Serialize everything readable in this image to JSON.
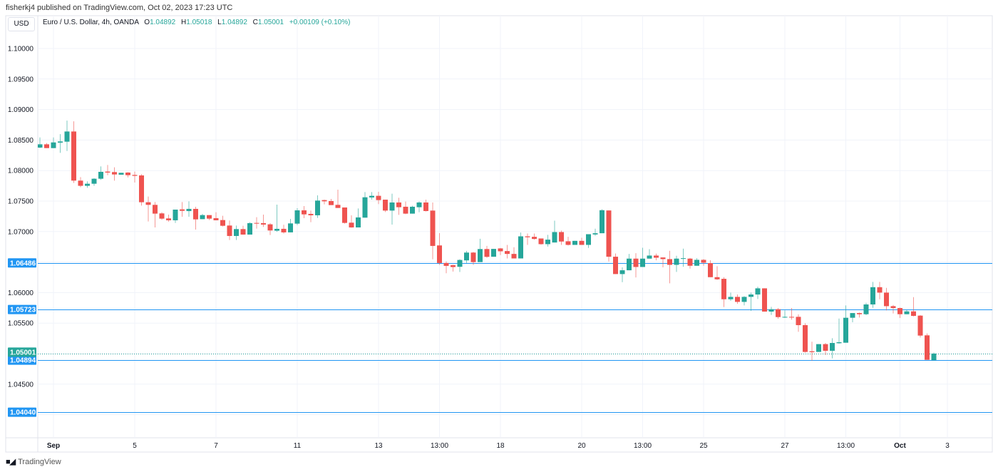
{
  "header": {
    "published": "fisherkj4 published on TradingView.com, Oct 02, 2023 17:23 UTC",
    "currency_button": "USD",
    "symbol": "Euro / U.S. Dollar, 4h, OANDA",
    "o_label": "O",
    "o_value": "1.04892",
    "h_label": "H",
    "h_value": "1.05018",
    "l_label": "L",
    "l_value": "1.04892",
    "c_label": "C",
    "c_value": "1.05001",
    "change": "+0.00109 (+0.10%)"
  },
  "footer": {
    "brand": "TradingView",
    "logo_text": "TV"
  },
  "colors": {
    "up": "#26a69a",
    "down": "#ef5350",
    "level_line": "#2196f3",
    "grid": "#f0f3fa",
    "axis_text": "#131722"
  },
  "chart_data": {
    "type": "candlestick",
    "title": "Euro / U.S. Dollar, 4h, OANDA",
    "ylim": [
      1.0345,
      1.1035
    ],
    "grid": true,
    "y_grid_step": 0.005,
    "y_ticks": [
      "1.10000",
      "1.09500",
      "1.09000",
      "1.08500",
      "1.08000",
      "1.07500",
      "1.07000",
      "1.06000",
      "1.05500",
      "1.04500"
    ],
    "x_ticks": [
      {
        "label": "Sep",
        "index": 2,
        "bold": true
      },
      {
        "label": "5",
        "index": 14
      },
      {
        "label": "7",
        "index": 26
      },
      {
        "label": "11",
        "index": 38
      },
      {
        "label": "13",
        "index": 50
      },
      {
        "label": "13:00",
        "index": 59
      },
      {
        "label": "18",
        "index": 68
      },
      {
        "label": "20",
        "index": 80
      },
      {
        "label": "13:00",
        "index": 89
      },
      {
        "label": "25",
        "index": 98
      },
      {
        "label": "27",
        "index": 110
      },
      {
        "label": "13:00",
        "index": 119
      },
      {
        "label": "Oct",
        "index": 127,
        "bold": true
      },
      {
        "label": "3",
        "index": 134
      }
    ],
    "horizontal_levels": [
      {
        "label": "1.06486",
        "value": 1.06486
      },
      {
        "label": "1.05723",
        "value": 1.05723
      },
      {
        "label": "1.04894",
        "value": 1.04894
      },
      {
        "label": "1.04040",
        "value": 1.0404
      }
    ],
    "last_price": {
      "label": "1.05001",
      "value": 1.05001
    },
    "candles_ohlc": [
      [
        1.08376,
        1.08543,
        1.08368,
        1.0843
      ],
      [
        1.0843,
        1.0845,
        1.08368,
        1.08368
      ],
      [
        1.08368,
        1.08543,
        1.08368,
        1.08461
      ],
      [
        1.08457,
        1.08597,
        1.0829,
        1.08477
      ],
      [
        1.08473,
        1.08819,
        1.08321,
        1.0864
      ],
      [
        1.0864,
        1.08807,
        1.07796,
        1.07835
      ],
      [
        1.07835,
        1.07893,
        1.07726,
        1.0775
      ],
      [
        1.0775,
        1.07823,
        1.07718,
        1.07784
      ],
      [
        1.07784,
        1.07874,
        1.0775,
        1.07866
      ],
      [
        1.07866,
        1.08068,
        1.07847,
        1.07979
      ],
      [
        1.07983,
        1.08092,
        1.07924,
        1.07967
      ],
      [
        1.07975,
        1.08053,
        1.07835,
        1.07936
      ],
      [
        1.07932,
        1.07963,
        1.07932,
        1.07963
      ],
      [
        1.07967,
        1.07975,
        1.07889,
        1.07924
      ],
      [
        1.07928,
        1.07983,
        1.07804,
        1.07913
      ],
      [
        1.0792,
        1.0794,
        1.07426,
        1.07481
      ],
      [
        1.07481,
        1.07574,
        1.07166,
        1.07438
      ],
      [
        1.07438,
        1.07484,
        1.07068,
        1.07294
      ],
      [
        1.07298,
        1.07317,
        1.07193,
        1.07212
      ],
      [
        1.07216,
        1.07278,
        1.07162,
        1.07185
      ],
      [
        1.07185,
        1.0736,
        1.07142,
        1.0736
      ],
      [
        1.07364,
        1.07484,
        1.07243,
        1.0734
      ],
      [
        1.07336,
        1.07496,
        1.07243,
        1.07372
      ],
      [
        1.07372,
        1.07407,
        1.07033,
        1.072
      ],
      [
        1.07204,
        1.0729,
        1.07204,
        1.0727
      ],
      [
        1.0727,
        1.0727,
        1.07189,
        1.07212
      ],
      [
        1.0722,
        1.07317,
        1.07185,
        1.07185
      ],
      [
        1.07189,
        1.07259,
        1.07084,
        1.07095
      ],
      [
        1.07099,
        1.07181,
        1.06862,
        1.06928
      ],
      [
        1.06928,
        1.07099,
        1.06862,
        1.07041
      ],
      [
        1.07041,
        1.07095,
        1.06948,
        1.06951
      ],
      [
        1.06951,
        1.07154,
        1.06951,
        1.07138
      ],
      [
        1.07142,
        1.07235,
        1.07049,
        1.0713
      ],
      [
        1.07138,
        1.07278,
        1.07076,
        1.07115
      ],
      [
        1.07119,
        1.07138,
        1.06944,
        1.07018
      ],
      [
        1.07014,
        1.07442,
        1.06998,
        1.07045
      ],
      [
        1.07045,
        1.07111,
        1.06967,
        1.06987
      ],
      [
        1.06987,
        1.07208,
        1.06987,
        1.07134
      ],
      [
        1.0713,
        1.07383,
        1.07107,
        1.07348
      ],
      [
        1.07348,
        1.07418,
        1.0722,
        1.07282
      ],
      [
        1.0729,
        1.07344,
        1.07154,
        1.07267
      ],
      [
        1.07267,
        1.07593,
        1.07224,
        1.07508
      ],
      [
        1.07516,
        1.07523,
        1.07446,
        1.07496
      ],
      [
        1.075,
        1.07535,
        1.07434,
        1.07434
      ],
      [
        1.07438,
        1.07687,
        1.07387,
        1.07387
      ],
      [
        1.07395,
        1.07395,
        1.0713,
        1.07142
      ],
      [
        1.07146,
        1.07267,
        1.07064,
        1.07068
      ],
      [
        1.07068,
        1.07379,
        1.07068,
        1.07232
      ],
      [
        1.07228,
        1.07648,
        1.07228,
        1.07562
      ],
      [
        1.07559,
        1.07648,
        1.07523,
        1.07586
      ],
      [
        1.07586,
        1.07652,
        1.0745,
        1.07516
      ],
      [
        1.07523,
        1.07523,
        1.07321,
        1.07344
      ],
      [
        1.07344,
        1.07621,
        1.07115,
        1.07477
      ],
      [
        1.07477,
        1.07554,
        1.07274,
        1.07399
      ],
      [
        1.07407,
        1.07492,
        1.07286,
        1.07294
      ],
      [
        1.07294,
        1.07422,
        1.07294,
        1.07407
      ],
      [
        1.07399,
        1.07496,
        1.07317,
        1.07477
      ],
      [
        1.07477,
        1.07523,
        1.07329,
        1.07337
      ],
      [
        1.07344,
        1.07477,
        1.06547,
        1.06765
      ],
      [
        1.06773,
        1.06975,
        1.06454,
        1.06485
      ],
      [
        1.06485,
        1.06512,
        1.06317,
        1.06438
      ],
      [
        1.0645,
        1.06458,
        1.06345,
        1.06419
      ],
      [
        1.06423,
        1.06547,
        1.06337,
        1.06535
      ],
      [
        1.06528,
        1.06683,
        1.06485,
        1.06656
      ],
      [
        1.06656,
        1.06668,
        1.06454,
        1.065
      ],
      [
        1.065,
        1.06882,
        1.065,
        1.06714
      ],
      [
        1.06714,
        1.06765,
        1.0657,
        1.06586
      ],
      [
        1.06588,
        1.06716,
        1.06588,
        1.06716
      ],
      [
        1.06724,
        1.06732,
        1.06615,
        1.06677
      ],
      [
        1.06681,
        1.06782,
        1.0656,
        1.06634
      ],
      [
        1.06634,
        1.06743,
        1.0656,
        1.0656
      ],
      [
        1.0656,
        1.06984,
        1.0656,
        1.06922
      ],
      [
        1.06922,
        1.06969,
        1.06782,
        1.06907
      ],
      [
        1.06914,
        1.06969,
        1.06868,
        1.06879
      ],
      [
        1.06887,
        1.06887,
        1.06786,
        1.06794
      ],
      [
        1.06794,
        1.06946,
        1.06755,
        1.06868
      ],
      [
        1.06821,
        1.07179,
        1.06821,
        1.06992
      ],
      [
        1.06992,
        1.07016,
        1.06782,
        1.06837
      ],
      [
        1.06841,
        1.06914,
        1.06771,
        1.06782
      ],
      [
        1.06782,
        1.06848,
        1.06782,
        1.06848
      ],
      [
        1.06848,
        1.06899,
        1.06782,
        1.06782
      ],
      [
        1.06782,
        1.06957,
        1.06732,
        1.06957
      ],
      [
        1.06953,
        1.07047,
        1.0693,
        1.06973
      ],
      [
        1.06973,
        1.07366,
        1.06973,
        1.0735
      ],
      [
        1.07346,
        1.07346,
        1.0651,
        1.06588
      ],
      [
        1.06588,
        1.06642,
        1.06304,
        1.06304
      ],
      [
        1.06304,
        1.06413,
        1.06171,
        1.06366
      ],
      [
        1.06366,
        1.06634,
        1.06366,
        1.06557
      ],
      [
        1.06557,
        1.06646,
        1.06249,
        1.0642
      ],
      [
        1.0642,
        1.06735,
        1.0642,
        1.06557
      ],
      [
        1.06557,
        1.06712,
        1.06557,
        1.06607
      ],
      [
        1.06607,
        1.06638,
        1.06529,
        1.06572
      ],
      [
        1.06576,
        1.06576,
        1.06413,
        1.06549
      ],
      [
        1.06549,
        1.06685,
        1.06152,
        1.06455
      ],
      [
        1.06455,
        1.06603,
        1.06339,
        1.06557
      ],
      [
        1.06553,
        1.0672,
        1.06424,
        1.06564
      ],
      [
        1.06557,
        1.06568,
        1.06393,
        1.0644
      ],
      [
        1.0644,
        1.06564,
        1.0644,
        1.06537
      ],
      [
        1.06537,
        1.06549,
        1.0644,
        1.0649
      ],
      [
        1.06483,
        1.0653,
        1.06253,
        1.06253
      ],
      [
        1.06253,
        1.06432,
        1.06207,
        1.06218
      ],
      [
        1.06226,
        1.06253,
        1.05763,
        1.05891
      ],
      [
        1.05891,
        1.06,
        1.05864,
        1.0593
      ],
      [
        1.0593,
        1.05969,
        1.05817,
        1.05848
      ],
      [
        1.05848,
        1.05942,
        1.0579,
        1.0593
      ],
      [
        1.0593,
        1.06,
        1.057,
        1.05969
      ],
      [
        1.05969,
        1.06097,
        1.05895,
        1.0607
      ],
      [
        1.0607,
        1.0607,
        1.05689,
        1.05689
      ],
      [
        1.05689,
        1.05767,
        1.05634,
        1.05728
      ],
      [
        1.05728,
        1.05747,
        1.05572,
        1.05599
      ],
      [
        1.05599,
        1.05708,
        1.05584,
        1.05603
      ],
      [
        1.05603,
        1.05747,
        1.05557,
        1.05595
      ],
      [
        1.05603,
        1.05642,
        1.05358,
        1.05467
      ],
      [
        1.05467,
        1.05498,
        1.05016,
        1.05028
      ],
      [
        1.05039,
        1.05195,
        1.04884,
        1.05024
      ],
      [
        1.05028,
        1.05156,
        1.05028,
        1.05156
      ],
      [
        1.05156,
        1.05175,
        1.04977,
        1.05047
      ],
      [
        1.05047,
        1.05253,
        1.04922,
        1.05175
      ],
      [
        1.05171,
        1.05576,
        1.05164,
        1.05187
      ],
      [
        1.05179,
        1.0579,
        1.05179,
        1.05588
      ],
      [
        1.05588,
        1.05665,
        1.05514,
        1.05665
      ],
      [
        1.05665,
        1.05673,
        1.05592,
        1.05646
      ],
      [
        1.05646,
        1.05833,
        1.0563,
        1.05806
      ],
      [
        1.05806,
        1.06175,
        1.05751,
        1.06089
      ],
      [
        1.06089,
        1.06175,
        1.05891,
        1.06
      ],
      [
        1.06,
        1.06078,
        1.05708,
        1.05778
      ],
      [
        1.05778,
        1.05798,
        1.05658,
        1.05747
      ],
      [
        1.05747,
        1.05755,
        1.05584,
        1.05646
      ],
      [
        1.05646,
        1.05712,
        1.05646,
        1.05693
      ],
      [
        1.05693,
        1.05926,
        1.05611,
        1.05619
      ],
      [
        1.05623,
        1.05631,
        1.05265,
        1.05296
      ],
      [
        1.053,
        1.05331,
        1.04899,
        1.04899
      ],
      [
        1.04892,
        1.05018,
        1.04892,
        1.05001
      ]
    ]
  }
}
